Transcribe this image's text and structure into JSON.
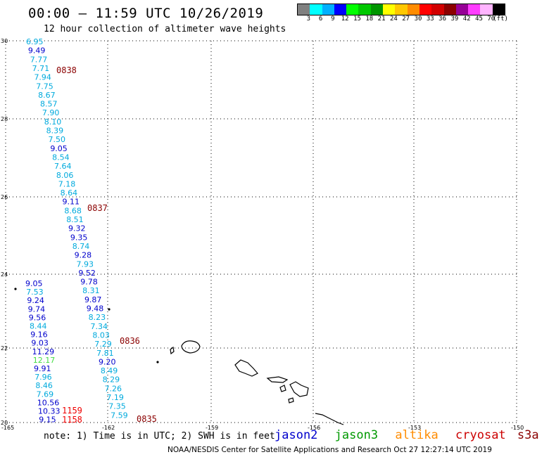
{
  "header": {
    "title": "00:00 – 11:59 UTC 10/26/2019",
    "subtitle": "12 hour collection of altimeter wave heights"
  },
  "scale": {
    "colors": [
      "#808080",
      "#00ffff",
      "#00b0ff",
      "#0000ff",
      "#00ff00",
      "#00c800",
      "#009600",
      "#ffff00",
      "#ffc800",
      "#ff8c00",
      "#ff0000",
      "#d20000",
      "#8b0000",
      "#960096",
      "#ff3cff",
      "#ffb4ff",
      "#000000"
    ],
    "labels": [
      "3",
      "6",
      "9",
      "12",
      "15",
      "18",
      "21",
      "24",
      "27",
      "30",
      "33",
      "36",
      "39",
      "42",
      "45",
      "70",
      "(ft)"
    ]
  },
  "axes": {
    "lon_labels": [
      "-165",
      "-162",
      "-159",
      "-156",
      "-153",
      "-150"
    ],
    "lat_labels": [
      "30",
      "28",
      "26",
      "24",
      "22",
      "20"
    ]
  },
  "track1": {
    "color_key": "cyan-blue",
    "values": [
      {
        "v": "6.95",
        "c": "#00aadd"
      },
      {
        "v": "9.49",
        "c": "#0000cc"
      },
      {
        "v": "7.77",
        "c": "#00aadd"
      },
      {
        "v": "7.71",
        "c": "#00aadd"
      },
      {
        "v": "7.94",
        "c": "#00aadd"
      },
      {
        "v": "7.75",
        "c": "#00aadd"
      },
      {
        "v": "8.67",
        "c": "#00aadd"
      },
      {
        "v": "8.57",
        "c": "#00aadd"
      },
      {
        "v": "7.90",
        "c": "#00aadd"
      },
      {
        "v": "8.10",
        "c": "#00aadd"
      },
      {
        "v": "8.39",
        "c": "#00aadd"
      },
      {
        "v": "7.50",
        "c": "#00aadd"
      },
      {
        "v": "9.05",
        "c": "#0000cc"
      },
      {
        "v": "8.54",
        "c": "#00aadd"
      },
      {
        "v": "7.64",
        "c": "#00aadd"
      },
      {
        "v": "8.06",
        "c": "#00aadd"
      },
      {
        "v": "7.18",
        "c": "#00aadd"
      },
      {
        "v": "8.64",
        "c": "#00aadd"
      },
      {
        "v": "9.11",
        "c": "#0000cc"
      },
      {
        "v": "8.68",
        "c": "#00aadd"
      },
      {
        "v": "8.51",
        "c": "#00aadd"
      },
      {
        "v": "9.32",
        "c": "#0000cc"
      },
      {
        "v": "9.35",
        "c": "#0000cc"
      },
      {
        "v": "8.74",
        "c": "#00aadd"
      },
      {
        "v": "9.28",
        "c": "#0000cc"
      },
      {
        "v": "7.93",
        "c": "#00aadd"
      },
      {
        "v": "9.52",
        "c": "#0000cc"
      },
      {
        "v": "9.78",
        "c": "#0000cc"
      },
      {
        "v": "8.31",
        "c": "#00aadd"
      },
      {
        "v": "9.87",
        "c": "#0000cc"
      },
      {
        "v": "9.48",
        "c": "#0000cc"
      },
      {
        "v": "8.23",
        "c": "#00aadd"
      },
      {
        "v": "7.34",
        "c": "#00aadd"
      },
      {
        "v": "8.03",
        "c": "#00aadd"
      },
      {
        "v": "7.29",
        "c": "#00aadd"
      },
      {
        "v": "7.81",
        "c": "#00aadd"
      },
      {
        "v": "9.20",
        "c": "#0000cc"
      },
      {
        "v": "8.49",
        "c": "#00aadd"
      },
      {
        "v": "8.29",
        "c": "#00aadd"
      },
      {
        "v": "7.26",
        "c": "#00aadd"
      },
      {
        "v": "7.19",
        "c": "#00aadd"
      },
      {
        "v": "7.35",
        "c": "#00aadd"
      },
      {
        "v": "7.59",
        "c": "#00aadd"
      }
    ]
  },
  "track2": {
    "values": [
      {
        "v": "9.05",
        "c": "#0000cc"
      },
      {
        "v": "7.53",
        "c": "#00aadd"
      },
      {
        "v": "9.24",
        "c": "#0000cc"
      },
      {
        "v": "9.74",
        "c": "#0000cc"
      },
      {
        "v": "9.56",
        "c": "#0000cc"
      },
      {
        "v": "8.44",
        "c": "#00aadd"
      },
      {
        "v": "9.16",
        "c": "#0000cc"
      },
      {
        "v": "9.03",
        "c": "#0000cc"
      },
      {
        "v": "11.29",
        "c": "#0000cc"
      },
      {
        "v": "12.17",
        "c": "#44dd44"
      },
      {
        "v": "9.91",
        "c": "#0000cc"
      },
      {
        "v": "7.96",
        "c": "#00aadd"
      },
      {
        "v": "8.46",
        "c": "#00aadd"
      },
      {
        "v": "7.69",
        "c": "#00aadd"
      },
      {
        "v": "10.56",
        "c": "#0000cc"
      },
      {
        "v": "10.33",
        "c": "#0000cc"
      },
      {
        "v": "9.15",
        "c": "#0000cc"
      }
    ]
  },
  "pass_times": [
    {
      "t": "0838",
      "c": "#8b0000"
    },
    {
      "t": "0837",
      "c": "#8b0000"
    },
    {
      "t": "0836",
      "c": "#8b0000"
    },
    {
      "t": "0835",
      "c": "#8b0000"
    },
    {
      "t": "1159",
      "c": "#ee0000"
    },
    {
      "t": "1158",
      "c": "#ee0000"
    }
  ],
  "note": "note: 1) Time is in UTC; 2) SWH is in feet",
  "satellites": [
    {
      "name": "jason2",
      "color": "#0000cc"
    },
    {
      "name": "jason3",
      "color": "#009900"
    },
    {
      "name": "altika",
      "color": "#ff8c00"
    },
    {
      "name": "cryosat",
      "color": "#cc0000"
    },
    {
      "name": "s3a",
      "color": "#8b0000"
    }
  ],
  "credit": "NOAA/NESDIS Center for Satellite Applications and Research    Oct 27 12:27:14 UTC 2019"
}
